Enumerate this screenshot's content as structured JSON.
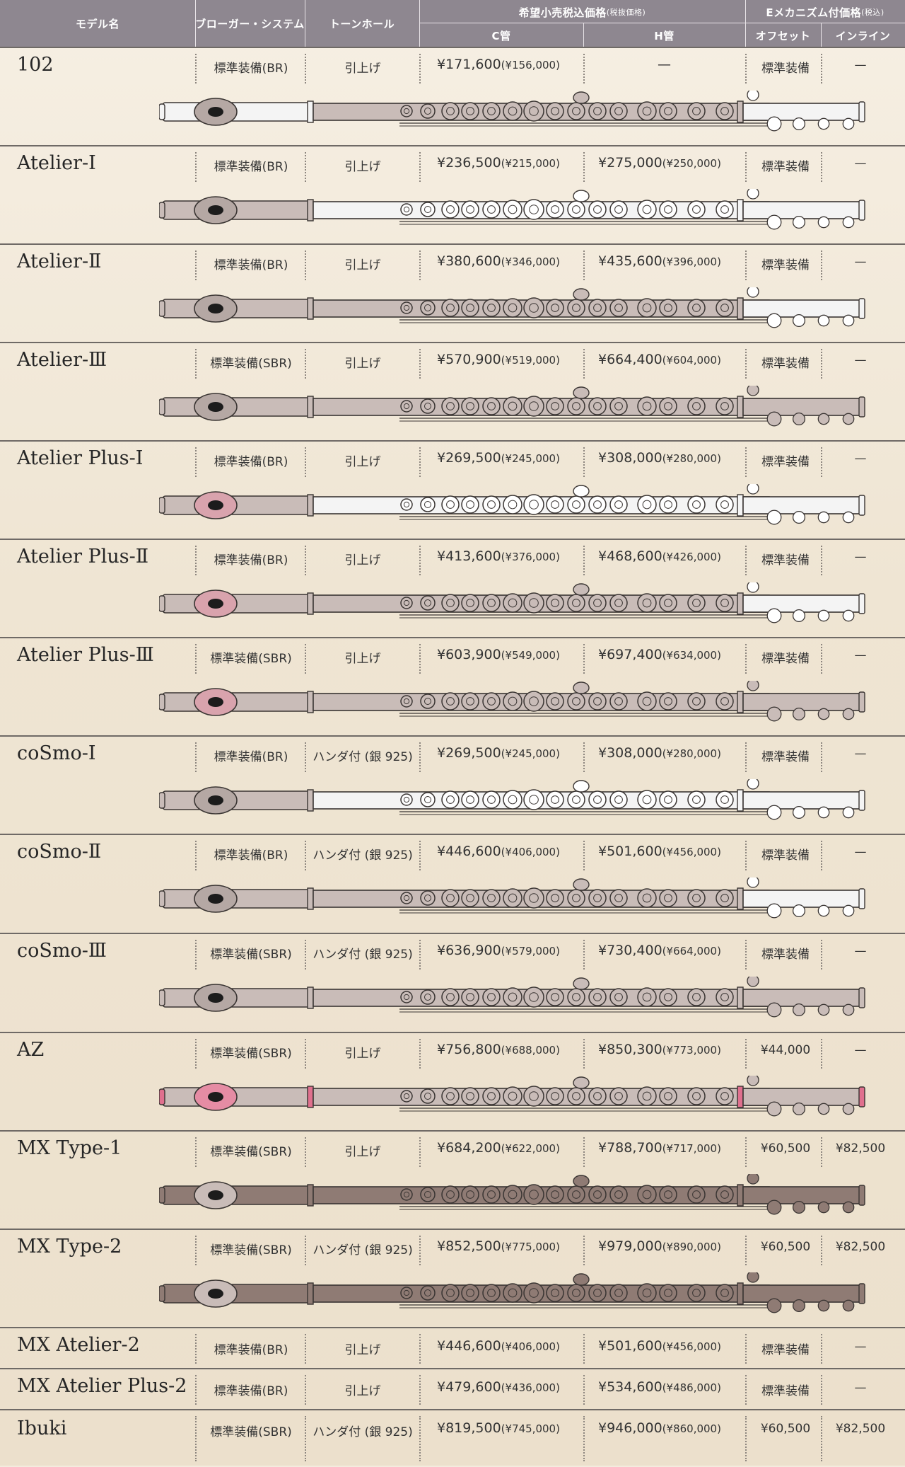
{
  "header": {
    "model": "モデル名",
    "brogger": "ブローガー・システム",
    "tonehole": "トーンホール",
    "price_group": "希望小売税込価格",
    "price_group_sub": "(税抜価格)",
    "c_foot": "C管",
    "h_foot": "H管",
    "emech_group": "Eメカニズム付価格",
    "emech_group_sub": "(税込)",
    "offset": "オフセット",
    "inline": "インライン"
  },
  "rows": [
    {
      "model": "102",
      "brogger": "標準装備(BR)",
      "tonehole": "引上げ",
      "c_price": "¥171,600",
      "c_ex": "(¥156,000)",
      "h_price": "—",
      "h_ex": "",
      "offset": "標準装備",
      "inline": "—",
      "flute": {
        "head": "#f4f4f4",
        "body": "#c9bcb8",
        "foot": "#f4f4f4",
        "lip": "#b5a8a4"
      }
    },
    {
      "model": "Atelier-I",
      "brogger": "標準装備(BR)",
      "tonehole": "引上げ",
      "c_price": "¥236,500",
      "c_ex": "(¥215,000)",
      "h_price": "¥275,000",
      "h_ex": "(¥250,000)",
      "offset": "標準装備",
      "inline": "—",
      "flute": {
        "head": "#c9bcb8",
        "body": "#f4f4f4",
        "foot": "#f4f4f4",
        "lip": "#b5a8a4"
      }
    },
    {
      "model": "Atelier-Ⅱ",
      "brogger": "標準装備(BR)",
      "tonehole": "引上げ",
      "c_price": "¥380,600",
      "c_ex": "(¥346,000)",
      "h_price": "¥435,600",
      "h_ex": "(¥396,000)",
      "offset": "標準装備",
      "inline": "—",
      "flute": {
        "head": "#c9bcb8",
        "body": "#c9bcb8",
        "foot": "#f4f4f4",
        "lip": "#b5a8a4"
      }
    },
    {
      "model": "Atelier-Ⅲ",
      "brogger": "標準装備(SBR)",
      "tonehole": "引上げ",
      "c_price": "¥570,900",
      "c_ex": "(¥519,000)",
      "h_price": "¥664,400",
      "h_ex": "(¥604,000)",
      "offset": "標準装備",
      "inline": "—",
      "flute": {
        "head": "#c9bcb8",
        "body": "#c9bcb8",
        "foot": "#c9bcb8",
        "lip": "#b5a8a4"
      }
    },
    {
      "model": "Atelier Plus-I",
      "brogger": "標準装備(BR)",
      "tonehole": "引上げ",
      "c_price": "¥269,500",
      "c_ex": "(¥245,000)",
      "h_price": "¥308,000",
      "h_ex": "(¥280,000)",
      "offset": "標準装備",
      "inline": "—",
      "flute": {
        "head": "#c9bcb8",
        "body": "#f4f4f4",
        "foot": "#f4f4f4",
        "lip": "#d9a3ad"
      }
    },
    {
      "model": "Atelier Plus-Ⅱ",
      "brogger": "標準装備(BR)",
      "tonehole": "引上げ",
      "c_price": "¥413,600",
      "c_ex": "(¥376,000)",
      "h_price": "¥468,600",
      "h_ex": "(¥426,000)",
      "offset": "標準装備",
      "inline": "—",
      "flute": {
        "head": "#c9bcb8",
        "body": "#c9bcb8",
        "foot": "#f4f4f4",
        "lip": "#d9a3ad"
      }
    },
    {
      "model": "Atelier Plus-Ⅲ",
      "brogger": "標準装備(SBR)",
      "tonehole": "引上げ",
      "c_price": "¥603,900",
      "c_ex": "(¥549,000)",
      "h_price": "¥697,400",
      "h_ex": "(¥634,000)",
      "offset": "標準装備",
      "inline": "—",
      "flute": {
        "head": "#c9bcb8",
        "body": "#c9bcb8",
        "foot": "#c9bcb8",
        "lip": "#d9a3ad"
      }
    },
    {
      "model": "coSmo-I",
      "brogger": "標準装備(BR)",
      "tonehole": "ハンダ付 (銀 925)",
      "c_price": "¥269,500",
      "c_ex": "(¥245,000)",
      "h_price": "¥308,000",
      "h_ex": "(¥280,000)",
      "offset": "標準装備",
      "inline": "—",
      "flute": {
        "head": "#c9bcb8",
        "body": "#f4f4f4",
        "foot": "#f4f4f4",
        "lip": "#b5a8a4"
      }
    },
    {
      "model": "coSmo-Ⅱ",
      "brogger": "標準装備(BR)",
      "tonehole": "ハンダ付 (銀 925)",
      "c_price": "¥446,600",
      "c_ex": "(¥406,000)",
      "h_price": "¥501,600",
      "h_ex": "(¥456,000)",
      "offset": "標準装備",
      "inline": "—",
      "flute": {
        "head": "#c9bcb8",
        "body": "#c9bcb8",
        "foot": "#f4f4f4",
        "lip": "#b5a8a4"
      }
    },
    {
      "model": "coSmo-Ⅲ",
      "brogger": "標準装備(SBR)",
      "tonehole": "ハンダ付 (銀 925)",
      "c_price": "¥636,900",
      "c_ex": "(¥579,000)",
      "h_price": "¥730,400",
      "h_ex": "(¥664,000)",
      "offset": "標準装備",
      "inline": "—",
      "flute": {
        "head": "#c9bcb8",
        "body": "#c9bcb8",
        "foot": "#c9bcb8",
        "lip": "#b5a8a4"
      }
    },
    {
      "model": "AZ",
      "brogger": "標準装備(SBR)",
      "tonehole": "引上げ",
      "c_price": "¥756,800",
      "c_ex": "(¥688,000)",
      "h_price": "¥850,300",
      "h_ex": "(¥773,000)",
      "offset": "¥44,000",
      "inline": "—",
      "flute": {
        "head": "#c9bcb8",
        "body": "#c9bcb8",
        "foot": "#c9bcb8",
        "lip": "#e58ca4",
        "accent": "#e0708e"
      }
    },
    {
      "model": "MX Type-1",
      "brogger": "標準装備(SBR)",
      "tonehole": "引上げ",
      "c_price": "¥684,200",
      "c_ex": "(¥622,000)",
      "h_price": "¥788,700",
      "h_ex": "(¥717,000)",
      "offset": "¥60,500",
      "inline": "¥82,500",
      "flute": {
        "head": "#8f7b74",
        "body": "#8f7b74",
        "foot": "#8f7b74",
        "lip": "#c9bcb8"
      }
    },
    {
      "model": "MX Type-2",
      "brogger": "標準装備(SBR)",
      "tonehole": "ハンダ付 (銀 925)",
      "c_price": "¥852,500",
      "c_ex": "(¥775,000)",
      "h_price": "¥979,000",
      "h_ex": "(¥890,000)",
      "offset": "¥60,500",
      "inline": "¥82,500",
      "flute": {
        "head": "#8f7b74",
        "body": "#8f7b74",
        "foot": "#8f7b74",
        "lip": "#c9bcb8"
      }
    },
    {
      "model": "MX Atelier-2",
      "brogger": "標準装備(BR)",
      "tonehole": "引上げ",
      "c_price": "¥446,600",
      "c_ex": "(¥406,000)",
      "h_price": "¥501,600",
      "h_ex": "(¥456,000)",
      "offset": "標準装備",
      "inline": "—"
    },
    {
      "model": "MX Atelier Plus-2",
      "brogger": "標準装備(BR)",
      "tonehole": "引上げ",
      "c_price": "¥479,600",
      "c_ex": "(¥436,000)",
      "h_price": "¥534,600",
      "h_ex": "(¥486,000)",
      "offset": "標準装備",
      "inline": "—"
    },
    {
      "model": "Ibuki",
      "brogger": "標準装備(SBR)",
      "tonehole": "ハンダ付 (銀 925)",
      "c_price": "¥819,500",
      "c_ex": "(¥745,000)",
      "h_price": "¥946,000",
      "h_ex": "(¥860,000)",
      "offset": "¥60,500",
      "inline": "¥82,500"
    }
  ]
}
